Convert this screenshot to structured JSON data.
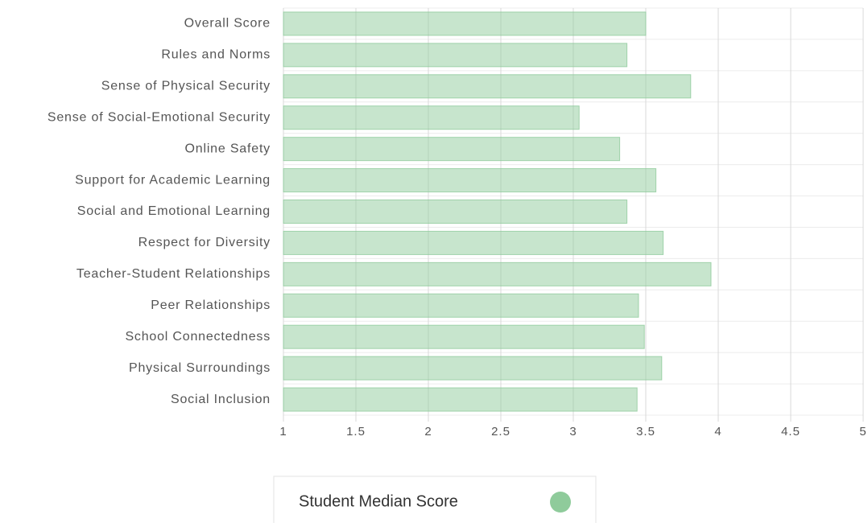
{
  "chart_data": {
    "type": "bar",
    "orientation": "horizontal",
    "categories": [
      "Overall Score",
      "Rules and Norms",
      "Sense of Physical Security",
      "Sense of Social-Emotional Security",
      "Online Safety",
      "Support for Academic Learning",
      "Social and Emotional Learning",
      "Respect for Diversity",
      "Teacher-Student Relationships",
      "Peer Relationships",
      "School Connectedness",
      "Physical Surroundings",
      "Social Inclusion"
    ],
    "series": [
      {
        "name": "Student Median Score",
        "color": "#8fcb9b",
        "values": [
          3.5,
          3.37,
          3.81,
          3.04,
          3.32,
          3.57,
          3.37,
          3.62,
          3.95,
          3.45,
          3.49,
          3.61,
          3.44
        ]
      }
    ],
    "xlim": [
      1,
      5
    ],
    "xticks": [
      1,
      1.5,
      2,
      2.5,
      3,
      3.5,
      4,
      4.5,
      5
    ],
    "grid": true
  }
}
